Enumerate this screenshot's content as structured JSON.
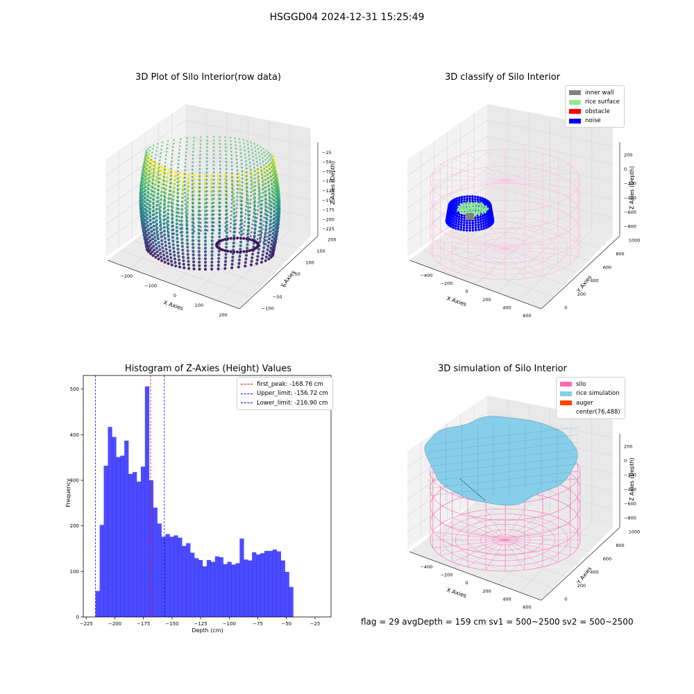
{
  "figure": {
    "suptitle": "HSGGD04 2024-12-31 15:25:49",
    "footer": "flag = 29  avgDepth = 159 cm  sv1 = 500~2500  sv2 = 500~2500"
  },
  "panel_raw": {
    "title": "3D Plot of Silo Interior(row data)",
    "xlabel": "X Axies",
    "ylabel": "Y Axies",
    "zlabel": "Z Axies (Depth)",
    "xticks": [
      "−200",
      "−100",
      "0",
      "100",
      "200"
    ],
    "yticks": [
      "−100",
      "−50",
      "0",
      "50",
      "100",
      "150",
      "200"
    ],
    "zticks": [
      "−25",
      "−50",
      "−75",
      "−100",
      "−125",
      "−150",
      "−175",
      "−200",
      "−225"
    ],
    "colormap": [
      "#440154",
      "#3b528b",
      "#21918c",
      "#5ec962",
      "#fde725"
    ]
  },
  "panel_classify": {
    "title": "3D classify of Silo Interior",
    "xlabel": "X Axies",
    "ylabel": "Y Axies",
    "zlabel": "Z Axies (Depth)",
    "xticks": [
      "−400",
      "−200",
      "0",
      "200",
      "400",
      "600"
    ],
    "yticks": [
      "0",
      "200",
      "400",
      "600",
      "800",
      "1000"
    ],
    "zticks": [
      "200",
      "0",
      "−200",
      "−400",
      "−600",
      "−800"
    ],
    "legend": [
      {
        "label": "inner wall",
        "color": "#808080"
      },
      {
        "label": "rice surface",
        "color": "#90ee90"
      },
      {
        "label": "obstacle",
        "color": "#ff0000"
      },
      {
        "label": "noise",
        "color": "#0000ff"
      }
    ]
  },
  "panel_sim": {
    "title": "3D simulation of Silo Interior",
    "xlabel": "X Axies",
    "ylabel": "Y Axies",
    "zlabel": "Z Axies (Depth)",
    "xticks": [
      "−400",
      "−200",
      "0",
      "200",
      "400",
      "600"
    ],
    "yticks": [
      "0",
      "200",
      "400",
      "600",
      "800",
      "1000"
    ],
    "zticks": [
      "200",
      "0",
      "−200",
      "−400",
      "−600",
      "−800"
    ],
    "legend": [
      {
        "label": "silo",
        "color": "#ff69b4"
      },
      {
        "label": "rice simulation",
        "color": "#87ceeb"
      },
      {
        "label": "auger",
        "color": "#ff4500"
      },
      {
        "label": "center(76,488)",
        "color": ""
      }
    ]
  },
  "chart_data": {
    "type": "bar",
    "title": "Histogram of Z-Axies (Height) Values",
    "xlabel": "Depth (cm)",
    "ylabel": "Frequency",
    "xlim": [
      -227.6,
      -11
    ],
    "ylim": [
      0,
      530
    ],
    "xticks": [
      -225,
      -200,
      -175,
      -150,
      -125,
      -100,
      -75,
      -50,
      -25
    ],
    "yticks": [
      0,
      100,
      200,
      300,
      400,
      500
    ],
    "bar_color": "#0000ff",
    "bins_start": -216.9,
    "bin_width": 3.6,
    "values": [
      57,
      202,
      332,
      417,
      395,
      351,
      354,
      387,
      314,
      318,
      297,
      330,
      506,
      300,
      240,
      205,
      176,
      182,
      176,
      179,
      174,
      156,
      162,
      141,
      129,
      125,
      111,
      125,
      121,
      133,
      131,
      116,
      121,
      115,
      118,
      172,
      126,
      124,
      142,
      137,
      140,
      145,
      145,
      148,
      144,
      124,
      99,
      66
    ],
    "vlines": [
      {
        "x": -168.76,
        "color": "#ff0000",
        "label": "first_peak: -168.76 cm"
      },
      {
        "x": -156.72,
        "color": "#0000ff",
        "label": "Upper_limit: -156.72 cm"
      },
      {
        "x": -216.9,
        "color": "#0000ff",
        "label": "Lower_limit: -216.90 cm"
      }
    ],
    "legend_position": "top-right"
  }
}
